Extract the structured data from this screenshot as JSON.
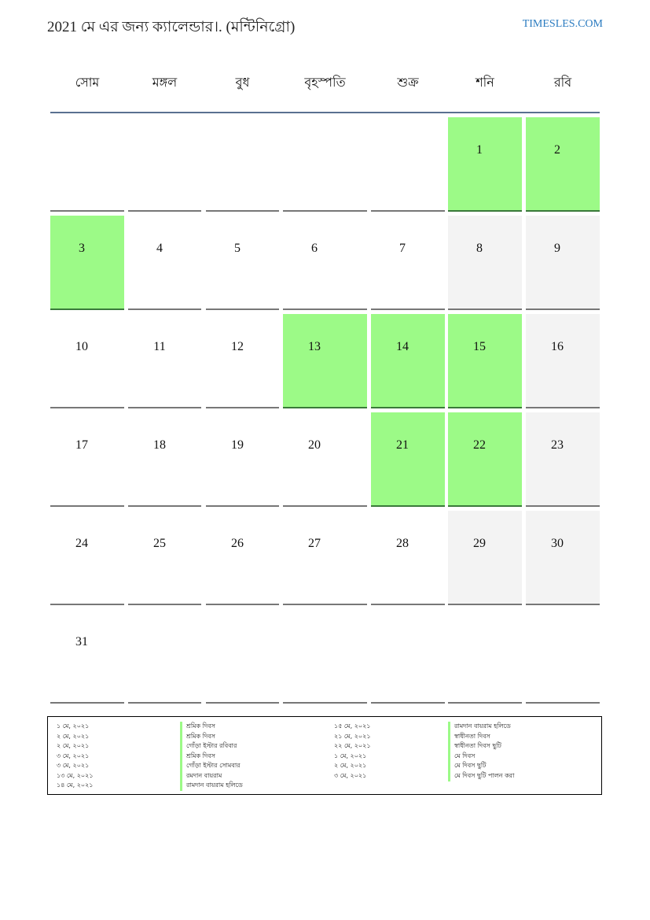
{
  "header": {
    "title": "2021 মে এর জন্য ক্যালেন্ডার।. (মন্টিনিগ্রো)",
    "site": "TIMESLES.COM"
  },
  "weekdays": [
    "সোম",
    "মঙ্গল",
    "বুধ",
    "বৃহস্পতি",
    "শুক্র",
    "শনি",
    "রবি"
  ],
  "calendar": {
    "first_weekday_index": 5,
    "days_in_month": 31,
    "holidays": [
      1,
      2,
      3,
      13,
      14,
      15,
      21,
      22
    ],
    "weekend_days": [
      8,
      9,
      16,
      23,
      29,
      30
    ],
    "holiday_color": "#9cfa87",
    "weekend_color": "#f3f3f3"
  },
  "legend": [
    {
      "date": "১ মে, ২০২১",
      "name": "শ্রমিক দিবস"
    },
    {
      "date": "২ মে, ২০২১",
      "name": "শ্রমিক দিবস"
    },
    {
      "date": "২ মে, ২০২১",
      "name": "গোঁড়া ইস্টার রবিবার"
    },
    {
      "date": "৩ মে, ২০২১",
      "name": "শ্রমিক দিবস"
    },
    {
      "date": "৩ মে, ২০২১",
      "name": "গোঁড়া ইস্টার সোমবার"
    },
    {
      "date": "১৩ মে, ২০২১",
      "name": "রমদান বায়রাম"
    },
    {
      "date": "১৪ মে, ২০২১",
      "name": "রামদান বায়রাম হলিডে"
    },
    {
      "date": "১৫ মে, ২০২১",
      "name": "রামদান বায়রাম হলিডে"
    },
    {
      "date": "২১ মে, ২০২১",
      "name": "স্বাধীনতা দিবস"
    },
    {
      "date": "২২ মে, ২০২১",
      "name": "স্বাধীনতা দিবস ছুটি"
    },
    {
      "date": "১ মে, ২০২১",
      "name": "মে দিবস"
    },
    {
      "date": "২ মে, ২০২১",
      "name": "মে দিবস ছুটি"
    },
    {
      "date": "৩ মে, ২০২১",
      "name": "মে দিবস ছুটি পালন করা"
    }
  ]
}
